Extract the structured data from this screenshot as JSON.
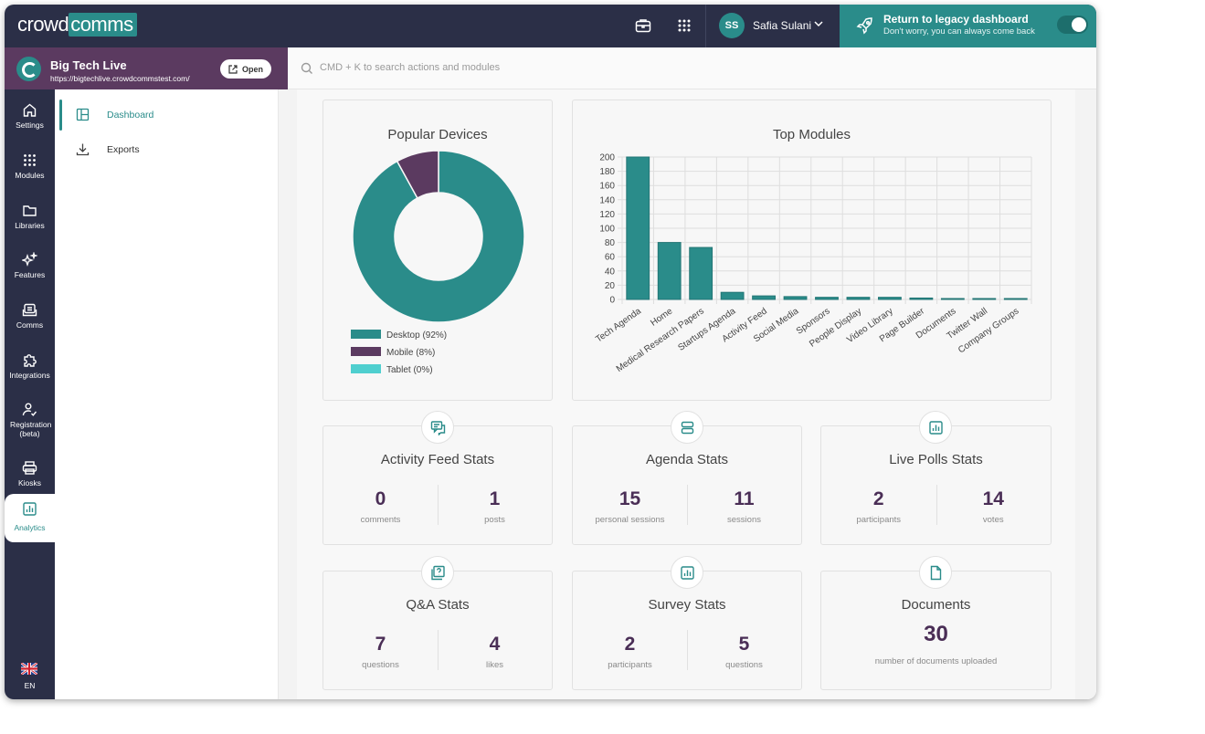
{
  "header": {
    "logo_left": "crowd",
    "logo_right": "comms",
    "user_initials": "SS",
    "user_name": "Safia Sulani",
    "legacy_title": "Return to legacy dashboard",
    "legacy_subtitle": "Don't worry, you can always come back"
  },
  "event": {
    "name": "Big Tech Live",
    "url": "https://bigtechlive.crowdcommstest.com/",
    "open_label": "Open"
  },
  "search": {
    "placeholder": "CMD + K to search actions and modules"
  },
  "rail": {
    "items": [
      {
        "label": "Settings",
        "icon": "home-icon"
      },
      {
        "label": "Modules",
        "icon": "grid-icon"
      },
      {
        "label": "Libraries",
        "icon": "folder-icon"
      },
      {
        "label": "Features",
        "icon": "sparkle-icon"
      },
      {
        "label": "Comms",
        "icon": "comms-icon"
      },
      {
        "label": "Integrations",
        "icon": "puzzle-icon"
      },
      {
        "label": "Registration (beta)",
        "icon": "user-check-icon"
      },
      {
        "label": "Kiosks",
        "icon": "printer-icon"
      },
      {
        "label": "Analytics",
        "icon": "bar-chart-icon",
        "active": true
      }
    ],
    "language": "EN"
  },
  "subnav": {
    "items": [
      {
        "label": "Dashboard",
        "active": true
      },
      {
        "label": "Exports"
      }
    ]
  },
  "colors": {
    "accent": "#2a8c8a",
    "purple": "#5b3a60",
    "navy": "#2b2f47",
    "tablet": "#4fcfcf"
  },
  "popular_devices": {
    "title": "Popular Devices",
    "legend": [
      "Desktop (92%)",
      "Mobile (8%)",
      "Tablet (0%)"
    ]
  },
  "top_modules": {
    "title": "Top Modules"
  },
  "chart_data": [
    {
      "type": "pie",
      "title": "Popular Devices",
      "categories": [
        "Desktop",
        "Mobile",
        "Tablet"
      ],
      "values": [
        92,
        8,
        0
      ],
      "colors": [
        "#2a8c8a",
        "#5b3a60",
        "#4fcfcf"
      ],
      "legend": "bottom"
    },
    {
      "type": "bar",
      "title": "Top Modules",
      "categories": [
        "Tech Agenda",
        "Home",
        "Medical Research Papers",
        "Startups Agenda",
        "Activity Feed",
        "Social Media",
        "Sponsors",
        "People Display",
        "Video Library",
        "Page Builder",
        "Documents",
        "Twitter Wall",
        "Company Groups"
      ],
      "values": [
        200,
        80,
        73,
        10,
        5,
        4,
        3,
        3,
        3,
        2,
        1,
        1,
        1
      ],
      "ylim": [
        0,
        200
      ],
      "yticks": [
        0,
        20,
        40,
        60,
        80,
        100,
        120,
        140,
        160,
        180,
        200
      ],
      "grid": true
    }
  ],
  "stats": {
    "activity": {
      "title": "Activity Feed Stats",
      "a_num": "0",
      "a_lbl": "comments",
      "b_num": "1",
      "b_lbl": "posts"
    },
    "agenda": {
      "title": "Agenda Stats",
      "a_num": "15",
      "a_lbl": "personal sessions",
      "b_num": "11",
      "b_lbl": "sessions"
    },
    "polls": {
      "title": "Live Polls Stats",
      "a_num": "2",
      "a_lbl": "participants",
      "b_num": "14",
      "b_lbl": "votes"
    },
    "qa": {
      "title": "Q&A Stats",
      "a_num": "7",
      "a_lbl": "questions",
      "b_num": "4",
      "b_lbl": "likes"
    },
    "survey": {
      "title": "Survey Stats",
      "a_num": "2",
      "a_lbl": "participants",
      "b_num": "5",
      "b_lbl": "questions"
    },
    "documents": {
      "title": "Documents",
      "num": "30",
      "lbl": "number of documents uploaded"
    }
  }
}
